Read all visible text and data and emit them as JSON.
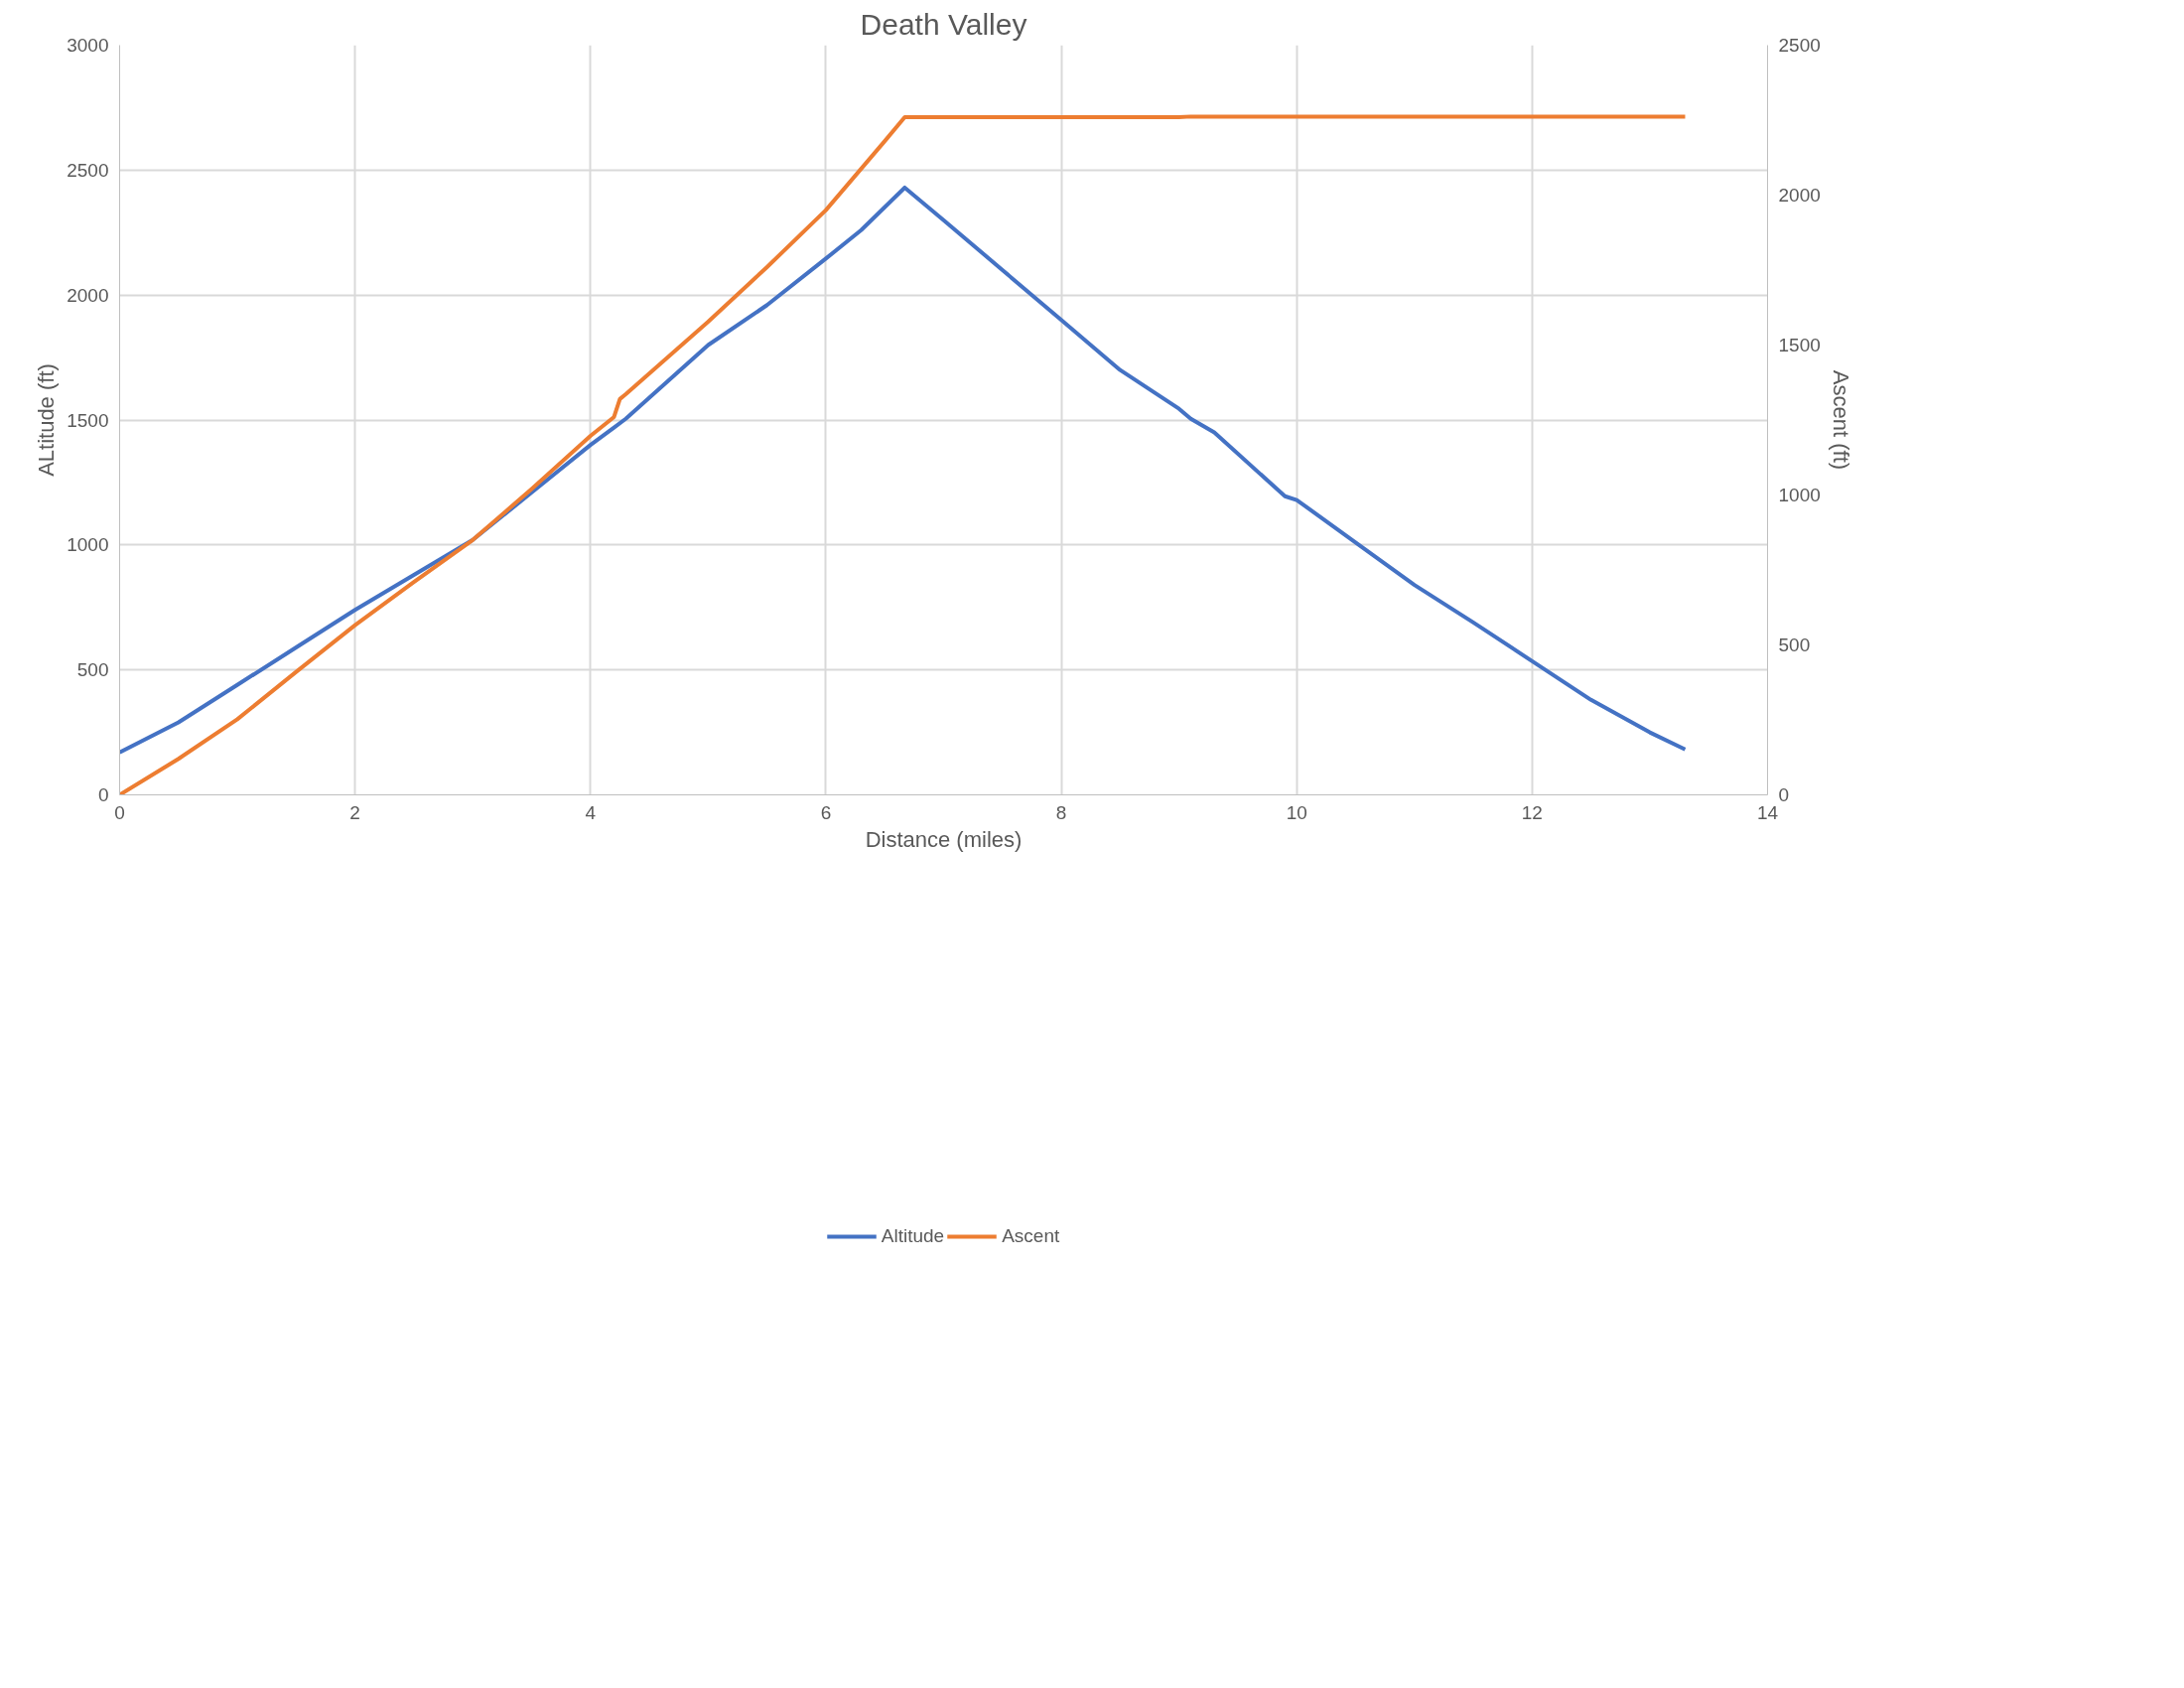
{
  "chart_data": {
    "type": "line",
    "title": "Death Valley",
    "xlabel": "Distance (miles)",
    "ylabel": "ALtitude (ft)",
    "y2label": "Ascent (ft)",
    "xlim": [
      0,
      14
    ],
    "xticks": [
      0,
      2,
      4,
      6,
      8,
      10,
      12,
      14
    ],
    "ylim": [
      0,
      3000
    ],
    "yticks": [
      0,
      500,
      1000,
      1500,
      2000,
      2500,
      3000
    ],
    "y2lim": [
      0,
      2500
    ],
    "y2ticks": [
      0,
      500,
      1000,
      1500,
      2000,
      2500
    ],
    "grid": true,
    "legend": "bottom",
    "line_style": "solid",
    "marker": "none",
    "series": [
      {
        "name": "Altitude",
        "color": "#4472c4",
        "x": [
          0,
          0.5,
          1,
          1.5,
          2,
          2.5,
          3,
          3.5,
          4,
          4.2,
          4.3,
          5,
          5.5,
          6,
          6.3,
          6.67,
          7,
          7.5,
          8,
          8.5,
          9,
          9.1,
          9.3,
          9.9,
          10,
          10.5,
          11,
          11.5,
          12,
          12.5,
          13,
          13.3
        ],
        "values": [
          170,
          290,
          440,
          590,
          740,
          880,
          1020,
          1210,
          1400,
          1470,
          1505,
          1800,
          1960,
          2146,
          2260,
          2430,
          2300,
          2100,
          1900,
          1700,
          1545,
          1505,
          1450,
          1195,
          1180,
          1010,
          840,
          690,
          535,
          380,
          250,
          182
        ]
      },
      {
        "name": "Ascent",
        "color": "#ed7d31",
        "axis": "y2",
        "x": [
          0,
          0.5,
          1,
          1.5,
          2,
          2.5,
          3,
          3.5,
          4,
          4.2,
          4.25,
          4.3,
          5,
          5.5,
          6,
          6.5,
          6.67,
          7,
          8,
          9,
          9.1,
          10,
          11,
          12,
          13.3
        ],
        "values": [
          0,
          120,
          252,
          410,
          566,
          710,
          850,
          1020,
          1197,
          1260,
          1320,
          1336,
          1578,
          1760,
          1950,
          2180,
          2260,
          2260,
          2260,
          2260,
          2262,
          2262,
          2262,
          2262,
          2262
        ]
      }
    ]
  }
}
